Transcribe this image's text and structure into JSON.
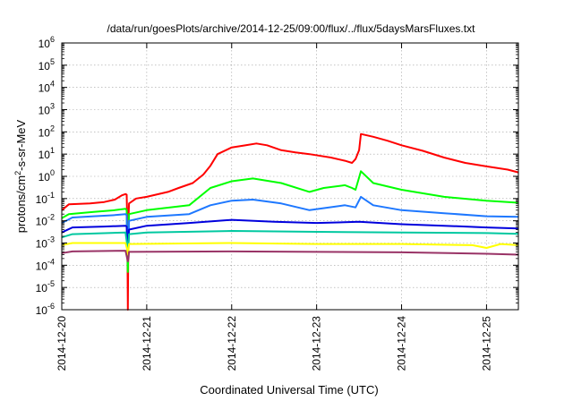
{
  "chart_data": {
    "type": "line",
    "title": "/data/run/goesPlots/archive/2014-12-25/09:00/flux/../flux/5daysMarsFluxes.txt",
    "xlabel": "Coordinated Universal Time (UTC)",
    "ylabel": "protons/cm²-s-sr-MeV",
    "ylabel_main": "protons/cm",
    "ylabel_sup": "2",
    "ylabel_tail": "-s-sr-MeV",
    "y_scale": "log",
    "ylim": [
      1e-06,
      1000000.0
    ],
    "y_ticks": [
      {
        "value": 1e-06,
        "exp": "-6"
      },
      {
        "value": 1e-05,
        "exp": "-5"
      },
      {
        "value": 0.0001,
        "exp": "-4"
      },
      {
        "value": 0.001,
        "exp": "-3"
      },
      {
        "value": 0.01,
        "exp": "-2"
      },
      {
        "value": 0.1,
        "exp": "-1"
      },
      {
        "value": 1,
        "exp": "0"
      },
      {
        "value": 10,
        "exp": "1"
      },
      {
        "value": 100,
        "exp": "2"
      },
      {
        "value": 1000,
        "exp": "3"
      },
      {
        "value": 10000,
        "exp": "4"
      },
      {
        "value": 100000,
        "exp": "5"
      },
      {
        "value": 1000000,
        "exp": "6"
      }
    ],
    "xlim": [
      "2014-12-20T00:00",
      "2014-12-25T09:00"
    ],
    "x_ticks": [
      "2014-12-20",
      "2014-12-21",
      "2014-12-22",
      "2014-12-23",
      "2014-12-24",
      "2014-12-25"
    ],
    "grid": true,
    "series": [
      {
        "color": "#ff0000",
        "points": [
          [
            "2014-12-20T00:00",
            0.03
          ],
          [
            "2014-12-20T02:00",
            0.055
          ],
          [
            "2014-12-20T08:00",
            0.06
          ],
          [
            "2014-12-20T12:00",
            0.07
          ],
          [
            "2014-12-20T15:00",
            0.09
          ],
          [
            "2014-12-20T17:00",
            0.14
          ],
          [
            "2014-12-20T18:00",
            0.16
          ],
          [
            "2014-12-20T18:20",
            0.15
          ],
          [
            "2014-12-20T18:30",
            0.01
          ],
          [
            "2014-12-20T18:40",
            1e-06
          ],
          [
            "2014-12-20T18:50",
            0.01
          ],
          [
            "2014-12-20T19:00",
            0.06
          ],
          [
            "2014-12-20T21:00",
            0.1
          ],
          [
            "2014-12-21T00:00",
            0.12
          ],
          [
            "2014-12-21T06:00",
            0.2
          ],
          [
            "2014-12-21T09:00",
            0.3
          ],
          [
            "2014-12-21T13:00",
            0.5
          ],
          [
            "2014-12-21T16:00",
            1.2
          ],
          [
            "2014-12-21T18:00",
            3
          ],
          [
            "2014-12-21T20:00",
            10
          ],
          [
            "2014-12-22T00:00",
            20
          ],
          [
            "2014-12-22T04:00",
            25
          ],
          [
            "2014-12-22T07:00",
            30
          ],
          [
            "2014-12-22T10:00",
            25
          ],
          [
            "2014-12-22T14:00",
            15
          ],
          [
            "2014-12-22T18:00",
            12
          ],
          [
            "2014-12-22T22:00",
            10
          ],
          [
            "2014-12-23T04:00",
            7
          ],
          [
            "2014-12-23T08:00",
            5
          ],
          [
            "2014-12-23T10:00",
            4
          ],
          [
            "2014-12-23T11:00",
            6
          ],
          [
            "2014-12-23T12:00",
            15
          ],
          [
            "2014-12-23T12:30",
            80
          ],
          [
            "2014-12-23T16:00",
            60
          ],
          [
            "2014-12-23T20:00",
            40
          ],
          [
            "2014-12-24T00:00",
            25
          ],
          [
            "2014-12-24T06:00",
            14
          ],
          [
            "2014-12-24T12:00",
            7
          ],
          [
            "2014-12-24T18:00",
            4
          ],
          [
            "2014-12-25T00:00",
            2.8
          ],
          [
            "2014-12-25T06:00",
            2
          ],
          [
            "2014-12-25T09:00",
            1.5
          ]
        ]
      },
      {
        "color": "#00ff00",
        "points": [
          [
            "2014-12-20T00:00",
            0.013
          ],
          [
            "2014-12-20T02:00",
            0.02
          ],
          [
            "2014-12-20T09:00",
            0.025
          ],
          [
            "2014-12-20T15:00",
            0.03
          ],
          [
            "2014-12-20T18:00",
            0.035
          ],
          [
            "2014-12-20T18:20",
            0.03
          ],
          [
            "2014-12-20T18:30",
            0.0005
          ],
          [
            "2014-12-20T18:40",
            5e-05
          ],
          [
            "2014-12-20T18:50",
            0.001
          ],
          [
            "2014-12-20T19:00",
            0.02
          ],
          [
            "2014-12-21T00:00",
            0.03
          ],
          [
            "2014-12-21T12:00",
            0.05
          ],
          [
            "2014-12-21T18:00",
            0.3
          ],
          [
            "2014-12-22T00:00",
            0.6
          ],
          [
            "2014-12-22T06:00",
            0.8
          ],
          [
            "2014-12-22T14:00",
            0.5
          ],
          [
            "2014-12-22T22:00",
            0.2
          ],
          [
            "2014-12-23T02:00",
            0.3
          ],
          [
            "2014-12-23T08:00",
            0.4
          ],
          [
            "2014-12-23T10:00",
            0.3
          ],
          [
            "2014-12-23T11:00",
            0.25
          ],
          [
            "2014-12-23T12:30",
            1.7
          ],
          [
            "2014-12-23T16:00",
            0.5
          ],
          [
            "2014-12-24T00:00",
            0.25
          ],
          [
            "2014-12-24T12:00",
            0.12
          ],
          [
            "2014-12-25T00:00",
            0.08
          ],
          [
            "2014-12-25T09:00",
            0.065
          ]
        ]
      },
      {
        "color": "#1e78ff",
        "points": [
          [
            "2014-12-20T00:00",
            0.008
          ],
          [
            "2014-12-20T03:00",
            0.014
          ],
          [
            "2014-12-20T09:00",
            0.016
          ],
          [
            "2014-12-20T15:00",
            0.018
          ],
          [
            "2014-12-20T18:00",
            0.02
          ],
          [
            "2014-12-20T18:20",
            0.018
          ],
          [
            "2014-12-20T18:30",
            0.0015
          ],
          [
            "2014-12-20T18:40",
            0.0005
          ],
          [
            "2014-12-20T18:50",
            0.001
          ],
          [
            "2014-12-20T19:00",
            0.01
          ],
          [
            "2014-12-21T00:00",
            0.015
          ],
          [
            "2014-12-21T12:00",
            0.02
          ],
          [
            "2014-12-21T18:00",
            0.05
          ],
          [
            "2014-12-22T00:00",
            0.08
          ],
          [
            "2014-12-22T06:00",
            0.09
          ],
          [
            "2014-12-22T14:00",
            0.06
          ],
          [
            "2014-12-22T22:00",
            0.03
          ],
          [
            "2014-12-23T08:00",
            0.05
          ],
          [
            "2014-12-23T11:00",
            0.04
          ],
          [
            "2014-12-23T12:30",
            0.12
          ],
          [
            "2014-12-23T16:00",
            0.05
          ],
          [
            "2014-12-24T00:00",
            0.03
          ],
          [
            "2014-12-24T12:00",
            0.022
          ],
          [
            "2014-12-25T00:00",
            0.016
          ],
          [
            "2014-12-25T09:00",
            0.015
          ]
        ]
      },
      {
        "color": "#0000dd",
        "points": [
          [
            "2014-12-20T00:00",
            0.003
          ],
          [
            "2014-12-20T03:00",
            0.005
          ],
          [
            "2014-12-20T12:00",
            0.0055
          ],
          [
            "2014-12-20T18:00",
            0.006
          ],
          [
            "2014-12-20T18:20",
            0.0055
          ],
          [
            "2014-12-20T18:30",
            0.001
          ],
          [
            "2014-12-20T18:40",
            0.0004
          ],
          [
            "2014-12-20T18:50",
            0.001
          ],
          [
            "2014-12-20T19:00",
            0.004
          ],
          [
            "2014-12-21T00:00",
            0.006
          ],
          [
            "2014-12-21T12:00",
            0.008
          ],
          [
            "2014-12-22T00:00",
            0.011
          ],
          [
            "2014-12-22T12:00",
            0.009
          ],
          [
            "2014-12-23T00:00",
            0.008
          ],
          [
            "2014-12-23T12:00",
            0.009
          ],
          [
            "2014-12-24T00:00",
            0.007
          ],
          [
            "2014-12-24T12:00",
            0.006
          ],
          [
            "2014-12-25T00:00",
            0.005
          ],
          [
            "2014-12-25T09:00",
            0.0045
          ]
        ]
      },
      {
        "color": "#00c8a0",
        "points": [
          [
            "2014-12-20T00:00",
            0.0018
          ],
          [
            "2014-12-20T03:00",
            0.0025
          ],
          [
            "2014-12-20T18:00",
            0.003
          ],
          [
            "2014-12-20T18:30",
            0.0008
          ],
          [
            "2014-12-20T18:40",
            0.0003
          ],
          [
            "2014-12-20T18:50",
            0.0008
          ],
          [
            "2014-12-20T19:00",
            0.0025
          ],
          [
            "2014-12-21T00:00",
            0.003
          ],
          [
            "2014-12-22T00:00",
            0.0035
          ],
          [
            "2014-12-23T00:00",
            0.0032
          ],
          [
            "2014-12-24T00:00",
            0.003
          ],
          [
            "2014-12-25T00:00",
            0.0028
          ],
          [
            "2014-12-25T09:00",
            0.0026
          ]
        ]
      },
      {
        "color": "#ffff00",
        "points": [
          [
            "2014-12-20T00:00",
            0.0008
          ],
          [
            "2014-12-20T03:00",
            0.001
          ],
          [
            "2014-12-20T18:00",
            0.001
          ],
          [
            "2014-12-20T18:30",
            0.0005
          ],
          [
            "2014-12-20T18:40",
            0.0003
          ],
          [
            "2014-12-20T18:50",
            0.0005
          ],
          [
            "2014-12-20T19:00",
            0.0009
          ],
          [
            "2014-12-22T00:00",
            0.001
          ],
          [
            "2014-12-23T00:00",
            0.0009
          ],
          [
            "2014-12-24T00:00",
            0.0009
          ],
          [
            "2014-12-24T20:00",
            0.0008
          ],
          [
            "2014-12-25T00:00",
            0.0006
          ],
          [
            "2014-12-25T04:00",
            0.0009
          ],
          [
            "2014-12-25T09:00",
            0.0008
          ]
        ]
      },
      {
        "color": "#993366",
        "points": [
          [
            "2014-12-20T00:00",
            0.00035
          ],
          [
            "2014-12-20T03:00",
            0.00042
          ],
          [
            "2014-12-20T18:00",
            0.00045
          ],
          [
            "2014-12-20T18:30",
            0.0002
          ],
          [
            "2014-12-20T18:40",
            0.00015
          ],
          [
            "2014-12-20T18:50",
            0.0002
          ],
          [
            "2014-12-20T19:00",
            0.0004
          ],
          [
            "2014-12-22T00:00",
            0.00042
          ],
          [
            "2014-12-23T00:00",
            0.0004
          ],
          [
            "2014-12-24T00:00",
            0.00038
          ],
          [
            "2014-12-25T00:00",
            0.00033
          ],
          [
            "2014-12-25T09:00",
            0.0003
          ]
        ]
      }
    ]
  }
}
